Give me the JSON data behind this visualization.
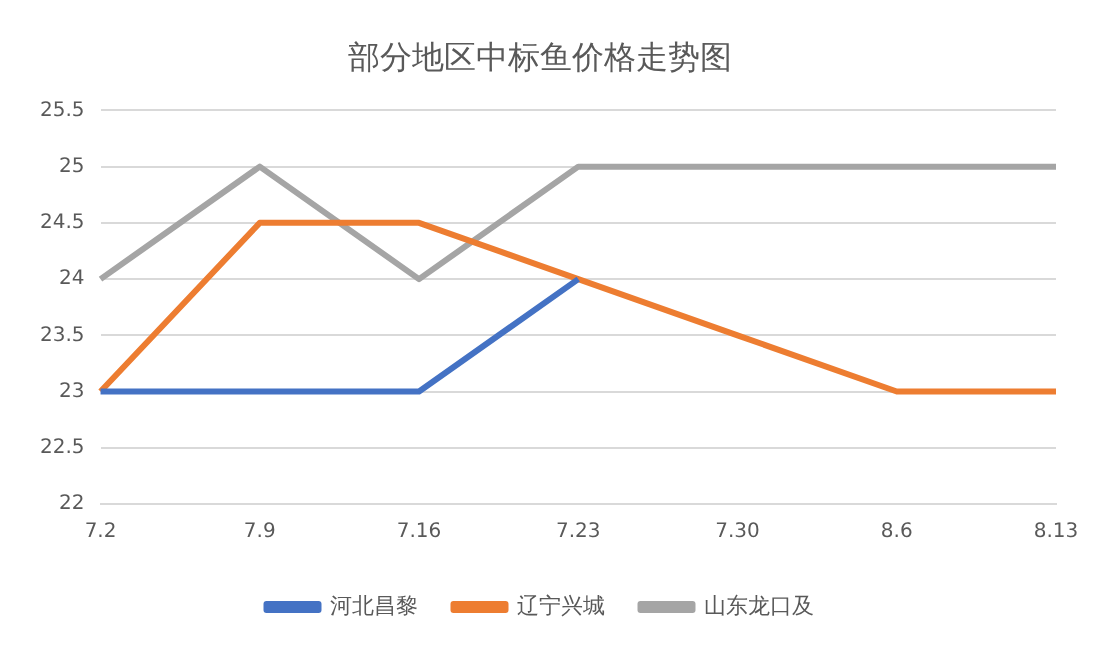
{
  "chart_data": {
    "type": "line",
    "title": "部分地区中标鱼价格走势图",
    "categories": [
      "7.2",
      "7.9",
      "7.16",
      "7.23",
      "7.30",
      "8.6",
      "8.13"
    ],
    "series": [
      {
        "name": "河北昌黎",
        "color": "#4472c4",
        "values": [
          23,
          23,
          23,
          24,
          null,
          null,
          null
        ]
      },
      {
        "name": "辽宁兴城",
        "color": "#ed7d31",
        "values": [
          23,
          24.5,
          24.5,
          24,
          23.5,
          23,
          23
        ]
      },
      {
        "name": "山东龙口及",
        "color": "#a5a5a5",
        "values": [
          24,
          25,
          24,
          25,
          25,
          25,
          25
        ]
      }
    ],
    "ylim": [
      22,
      25.5
    ],
    "yticks": [
      22,
      22.5,
      23,
      23.5,
      24,
      24.5,
      25,
      25.5
    ],
    "grid": "y",
    "legend": "bottom",
    "marker": "none",
    "line_style": "solid"
  }
}
